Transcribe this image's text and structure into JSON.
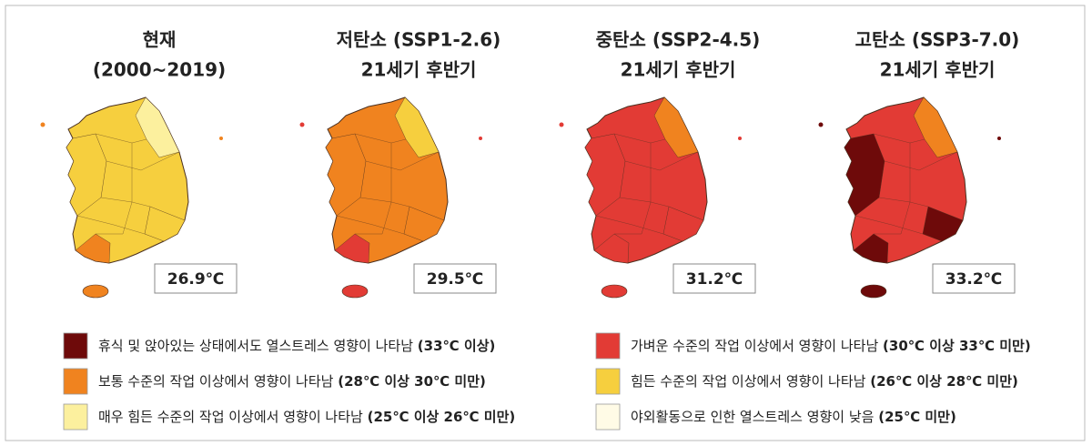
{
  "panels": [
    {
      "title": "현재",
      "subtitle": "(2000~2019)",
      "temperature": "26.9℃"
    },
    {
      "title": "저탄소 (SSP1-2.6)",
      "subtitle": "21세기 후반기",
      "temperature": "29.5℃"
    },
    {
      "title": "중탄소 (SSP2-4.5)",
      "subtitle": "21세기 후반기",
      "temperature": "31.2℃"
    },
    {
      "title": "고탄소 (SSP3-7.0)",
      "subtitle": "21세기 후반기",
      "temperature": "33.2℃"
    }
  ],
  "legend": {
    "items": [
      {
        "text": "휴식 및 앉아있는 상태에서도 열스트레스 영향이 나타남",
        "range": "(33℃ 이상)",
        "color": "#6e0a0a"
      },
      {
        "text": "가벼운 수준의 작업 이상에서 영향이 나타남",
        "range": "(30℃ 이상 33℃ 미만)",
        "color": "#e23b35"
      },
      {
        "text": "보통 수준의 작업 이상에서 영향이 나타남",
        "range": "(28℃ 이상 30℃ 미만)",
        "color": "#f0831f"
      },
      {
        "text": "힘든 수준의 작업 이상에서 영향이 나타남",
        "range": "(26℃ 이상 28℃ 미만)",
        "color": "#f6cf3e"
      },
      {
        "text": "매우 힘든 수준의 작업 이상에서 영향이 나타남",
        "range": "(25℃ 이상 26℃ 미만)",
        "color": "#fcf09e"
      },
      {
        "text": "야외활동으로 인한 열스트레스 영향이 낮음",
        "range": "(25℃ 미만)",
        "color": "#fffbe6"
      }
    ]
  }
}
